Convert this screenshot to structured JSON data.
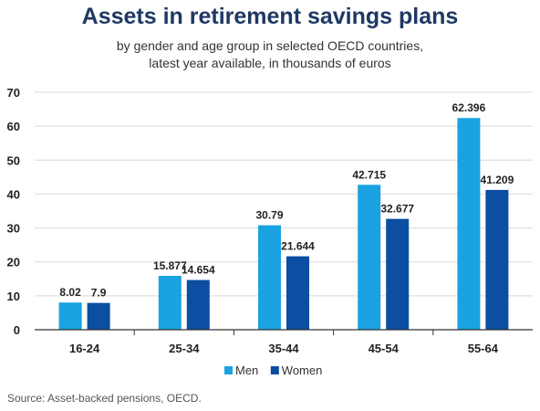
{
  "chart_data": {
    "type": "bar",
    "title": "Assets in retirement savings plans",
    "subtitle": [
      "by gender and age group in selected OECD countries,",
      "latest year available, in thousands of euros"
    ],
    "categories": [
      "16-24",
      "25-34",
      "35-44",
      "45-54",
      "55-64"
    ],
    "series": [
      {
        "name": "Men",
        "color": "#1aa3e0",
        "values": [
          8.02,
          15.877,
          30.79,
          42.715,
          62.396
        ],
        "labels": [
          "8.02",
          "15.877",
          "30.79",
          "42.715",
          "62.396"
        ]
      },
      {
        "name": "Women",
        "color": "#0b4ea2",
        "values": [
          7.9,
          14.654,
          21.644,
          32.677,
          41.209
        ],
        "labels": [
          "7.9",
          "14.654",
          "21.644",
          "32.677",
          "41.209"
        ]
      }
    ],
    "yticks": [
      "0",
      "10",
      "20",
      "30",
      "40",
      "50",
      "60",
      "70"
    ],
    "ylim": [
      0,
      70
    ],
    "grid": true,
    "legend": "bottom-center",
    "source": "Source: Asset-backed pensions, OECD."
  }
}
